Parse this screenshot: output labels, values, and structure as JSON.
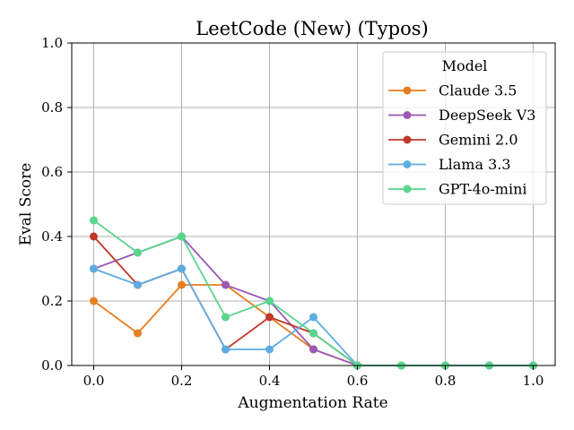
{
  "chart_data": {
    "type": "line",
    "title": "LeetCode (New) (Typos)",
    "xlabel": "Augmentation Rate",
    "ylabel": "Eval Score",
    "xlim": [
      -0.05,
      1.05
    ],
    "ylim": [
      0.0,
      1.0
    ],
    "grid": true,
    "xticks": [
      0.0,
      0.2,
      0.4,
      0.6,
      0.8,
      1.0
    ],
    "xtick_labels": [
      "0.0",
      "0.2",
      "0.4",
      "0.6",
      "0.8",
      "1.0"
    ],
    "yticks": [
      0.0,
      0.2,
      0.4,
      0.6,
      0.8,
      1.0
    ],
    "ytick_labels": [
      "0.0",
      "0.2",
      "0.4",
      "0.6",
      "0.8",
      "1.0"
    ],
    "legend_title": "Model",
    "legend_position": "top-right",
    "x": [
      0.0,
      0.1,
      0.2,
      0.3,
      0.4,
      0.5,
      0.6,
      0.7,
      0.8,
      0.9,
      1.0
    ],
    "series": [
      {
        "name": "Claude 3.5",
        "color": "#e67e22",
        "values": [
          0.2,
          0.1,
          0.25,
          0.25,
          0.15,
          0.05,
          0.0,
          0.0,
          0.0,
          0.0,
          0.0
        ]
      },
      {
        "name": "DeepSeek V3",
        "color": "#9b59b6",
        "values": [
          0.3,
          0.35,
          0.4,
          0.25,
          0.2,
          0.05,
          0.0,
          0.0,
          0.0,
          0.0,
          0.0
        ]
      },
      {
        "name": "Gemini 2.0",
        "color": "#c0392b",
        "values": [
          0.4,
          0.25,
          0.3,
          0.05,
          0.15,
          0.1,
          0.0,
          0.0,
          0.0,
          0.0,
          0.0
        ]
      },
      {
        "name": "Llama 3.3",
        "color": "#5dade2",
        "values": [
          0.3,
          0.25,
          0.3,
          0.05,
          0.05,
          0.15,
          0.0,
          0.0,
          0.0,
          0.0,
          0.0
        ]
      },
      {
        "name": "GPT-4o-mini",
        "color": "#58d68d",
        "values": [
          0.45,
          0.35,
          0.4,
          0.15,
          0.2,
          0.1,
          0.0,
          0.0,
          0.0,
          0.0,
          0.0
        ]
      }
    ]
  }
}
